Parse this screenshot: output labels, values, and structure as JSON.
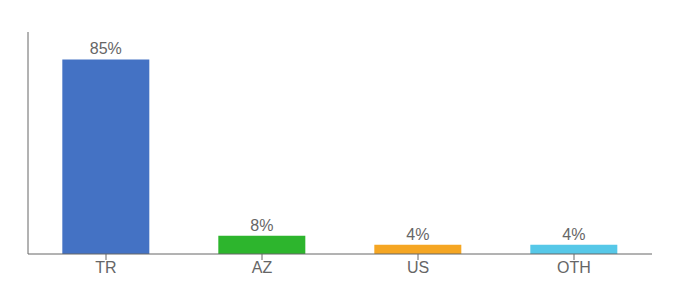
{
  "chart_data": {
    "type": "bar",
    "categories": [
      "TR",
      "AZ",
      "US",
      "OTH"
    ],
    "values": [
      85,
      8,
      4,
      4
    ],
    "value_labels": [
      "85%",
      "8%",
      "4%",
      "4%"
    ],
    "colors": [
      "#4472c4",
      "#2db52d",
      "#f5a623",
      "#56c8e8"
    ],
    "ylim": [
      0,
      97
    ],
    "grid": false,
    "data_labels": true,
    "tick_labels": "x"
  }
}
